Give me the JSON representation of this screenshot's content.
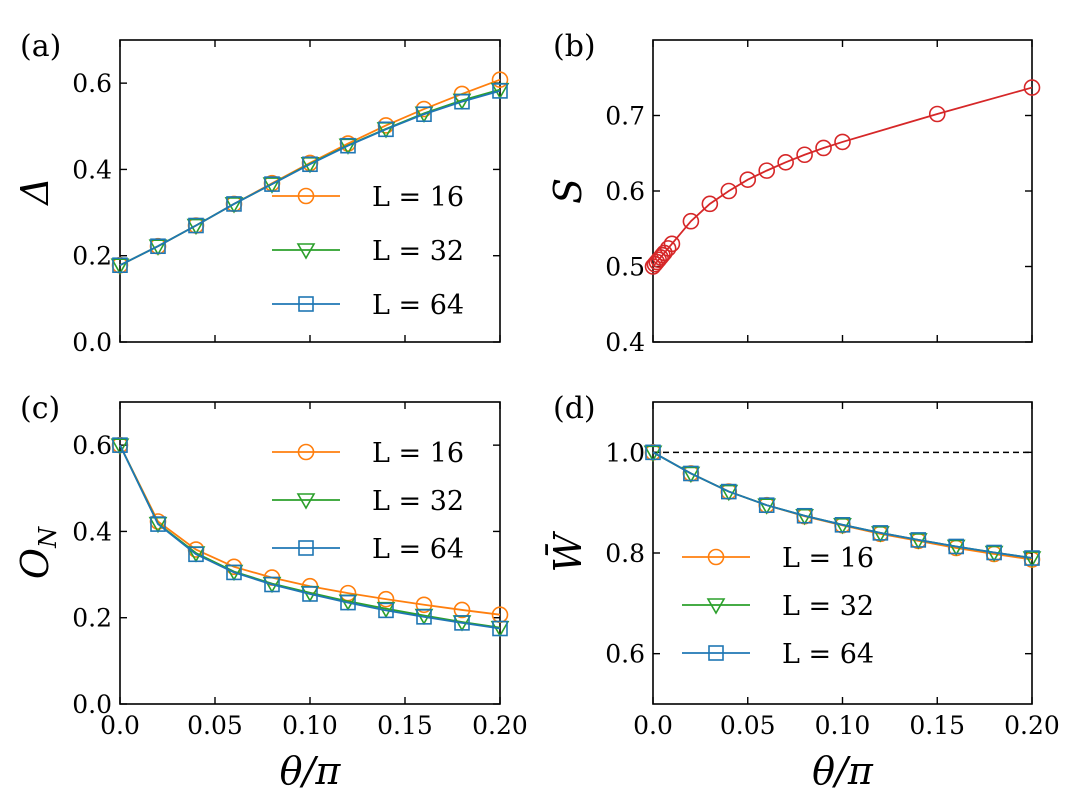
{
  "colors": {
    "L16": "#ff7f0e",
    "L32": "#2ca02c",
    "L64": "#1f77b4",
    "S": "#d62728",
    "reference": "#000000"
  },
  "chart_data": [
    {
      "id": "a",
      "panel_label": "(a)",
      "type": "line",
      "ylabel": "Δ",
      "xlabel": "",
      "xlim": [
        0,
        0.2
      ],
      "ylim": [
        0,
        0.7
      ],
      "xticks": [
        0,
        0.05,
        0.1,
        0.15,
        0.2
      ],
      "xtick_labels": [],
      "yticks": [
        0,
        0.2,
        0.4,
        0.6
      ],
      "ytick_labels": [
        "0.0",
        "0.2",
        "0.4",
        "0.6"
      ],
      "legend": "lower-right",
      "x": [
        0,
        0.02,
        0.04,
        0.06,
        0.08,
        0.1,
        0.12,
        0.14,
        0.16,
        0.18,
        0.2
      ],
      "series": [
        {
          "name": "L = 16",
          "marker": "circle",
          "color_key": "L16",
          "values": [
            0.178,
            0.222,
            0.27,
            0.32,
            0.368,
            0.415,
            0.46,
            0.502,
            0.54,
            0.575,
            0.608
          ]
        },
        {
          "name": "L = 32",
          "marker": "triangle-down",
          "color_key": "L32",
          "values": [
            0.178,
            0.222,
            0.27,
            0.32,
            0.366,
            0.413,
            0.456,
            0.494,
            0.53,
            0.56,
            0.585
          ]
        },
        {
          "name": "L = 64",
          "marker": "square",
          "color_key": "L64",
          "values": [
            0.178,
            0.222,
            0.27,
            0.32,
            0.366,
            0.412,
            0.455,
            0.493,
            0.528,
            0.557,
            0.582
          ]
        }
      ]
    },
    {
      "id": "b",
      "panel_label": "(b)",
      "type": "line",
      "ylabel": "S",
      "xlabel": "",
      "xlim": [
        0,
        0.2
      ],
      "ylim": [
        0.4,
        0.8
      ],
      "xticks": [
        0,
        0.05,
        0.1,
        0.15,
        0.2
      ],
      "xtick_labels": [],
      "yticks": [
        0.4,
        0.5,
        0.6,
        0.7
      ],
      "ytick_labels": [
        "0.4",
        "0.5",
        "0.6",
        "0.7"
      ],
      "legend": "none",
      "x": [
        0,
        0.001,
        0.002,
        0.003,
        0.004,
        0.005,
        0.006,
        0.008,
        0.01,
        0.02,
        0.03,
        0.04,
        0.05,
        0.06,
        0.07,
        0.08,
        0.09,
        0.1,
        0.15,
        0.2
      ],
      "series": [
        {
          "name": "S",
          "marker": "circle",
          "color_key": "S",
          "values": [
            0.5,
            0.503,
            0.506,
            0.509,
            0.512,
            0.515,
            0.518,
            0.524,
            0.53,
            0.56,
            0.583,
            0.6,
            0.615,
            0.627,
            0.638,
            0.648,
            0.657,
            0.665,
            0.702,
            0.737
          ]
        }
      ]
    },
    {
      "id": "c",
      "panel_label": "(c)",
      "type": "line",
      "ylabel": "O",
      "ylabel_sub": "N",
      "xlabel": "θ/π",
      "xlim": [
        0,
        0.2
      ],
      "ylim": [
        0,
        0.7
      ],
      "xticks": [
        0,
        0.05,
        0.1,
        0.15,
        0.2
      ],
      "xtick_labels": [
        "0.0",
        "0.05",
        "0.10",
        "0.15",
        "0.20"
      ],
      "yticks": [
        0,
        0.2,
        0.4,
        0.6
      ],
      "ytick_labels": [
        "0.0",
        "0.2",
        "0.4",
        "0.6"
      ],
      "legend": "top-right",
      "x": [
        0,
        0.02,
        0.04,
        0.06,
        0.08,
        0.1,
        0.12,
        0.14,
        0.16,
        0.18,
        0.2
      ],
      "series": [
        {
          "name": "L = 16",
          "marker": "circle",
          "color_key": "L16",
          "values": [
            0.6,
            0.423,
            0.358,
            0.318,
            0.293,
            0.273,
            0.257,
            0.243,
            0.23,
            0.218,
            0.207
          ]
        },
        {
          "name": "L = 32",
          "marker": "triangle-down",
          "color_key": "L32",
          "values": [
            0.6,
            0.418,
            0.35,
            0.307,
            0.279,
            0.258,
            0.238,
            0.221,
            0.205,
            0.19,
            0.177
          ]
        },
        {
          "name": "L = 64",
          "marker": "square",
          "color_key": "L64",
          "values": [
            0.6,
            0.417,
            0.347,
            0.305,
            0.277,
            0.255,
            0.235,
            0.217,
            0.202,
            0.188,
            0.175
          ]
        }
      ]
    },
    {
      "id": "d",
      "panel_label": "(d)",
      "type": "line",
      "ylabel": "W̄",
      "xlabel": "θ/π",
      "xlim": [
        0,
        0.2
      ],
      "ylim": [
        0.5,
        1.1
      ],
      "xticks": [
        0,
        0.05,
        0.1,
        0.15,
        0.2
      ],
      "xtick_labels": [
        "0.0",
        "0.05",
        "0.10",
        "0.15",
        "0.20"
      ],
      "yticks": [
        0.6,
        0.8,
        1.0
      ],
      "ytick_labels": [
        "0.6",
        "0.8",
        "1.0"
      ],
      "legend": "lower-left",
      "reference_line": 1.0,
      "x": [
        0,
        0.02,
        0.04,
        0.06,
        0.08,
        0.1,
        0.12,
        0.14,
        0.16,
        0.18,
        0.2
      ],
      "series": [
        {
          "name": "L = 16",
          "marker": "circle",
          "color_key": "L16",
          "values": [
            1.0,
            0.958,
            0.922,
            0.895,
            0.873,
            0.855,
            0.838,
            0.824,
            0.81,
            0.798,
            0.787
          ]
        },
        {
          "name": "L = 32",
          "marker": "triangle-down",
          "color_key": "L32",
          "values": [
            1.0,
            0.958,
            0.922,
            0.895,
            0.874,
            0.856,
            0.84,
            0.826,
            0.813,
            0.801,
            0.79
          ]
        },
        {
          "name": "L = 64",
          "marker": "square",
          "color_key": "L64",
          "values": [
            1.0,
            0.958,
            0.922,
            0.895,
            0.874,
            0.856,
            0.84,
            0.826,
            0.813,
            0.801,
            0.79
          ]
        }
      ]
    }
  ]
}
